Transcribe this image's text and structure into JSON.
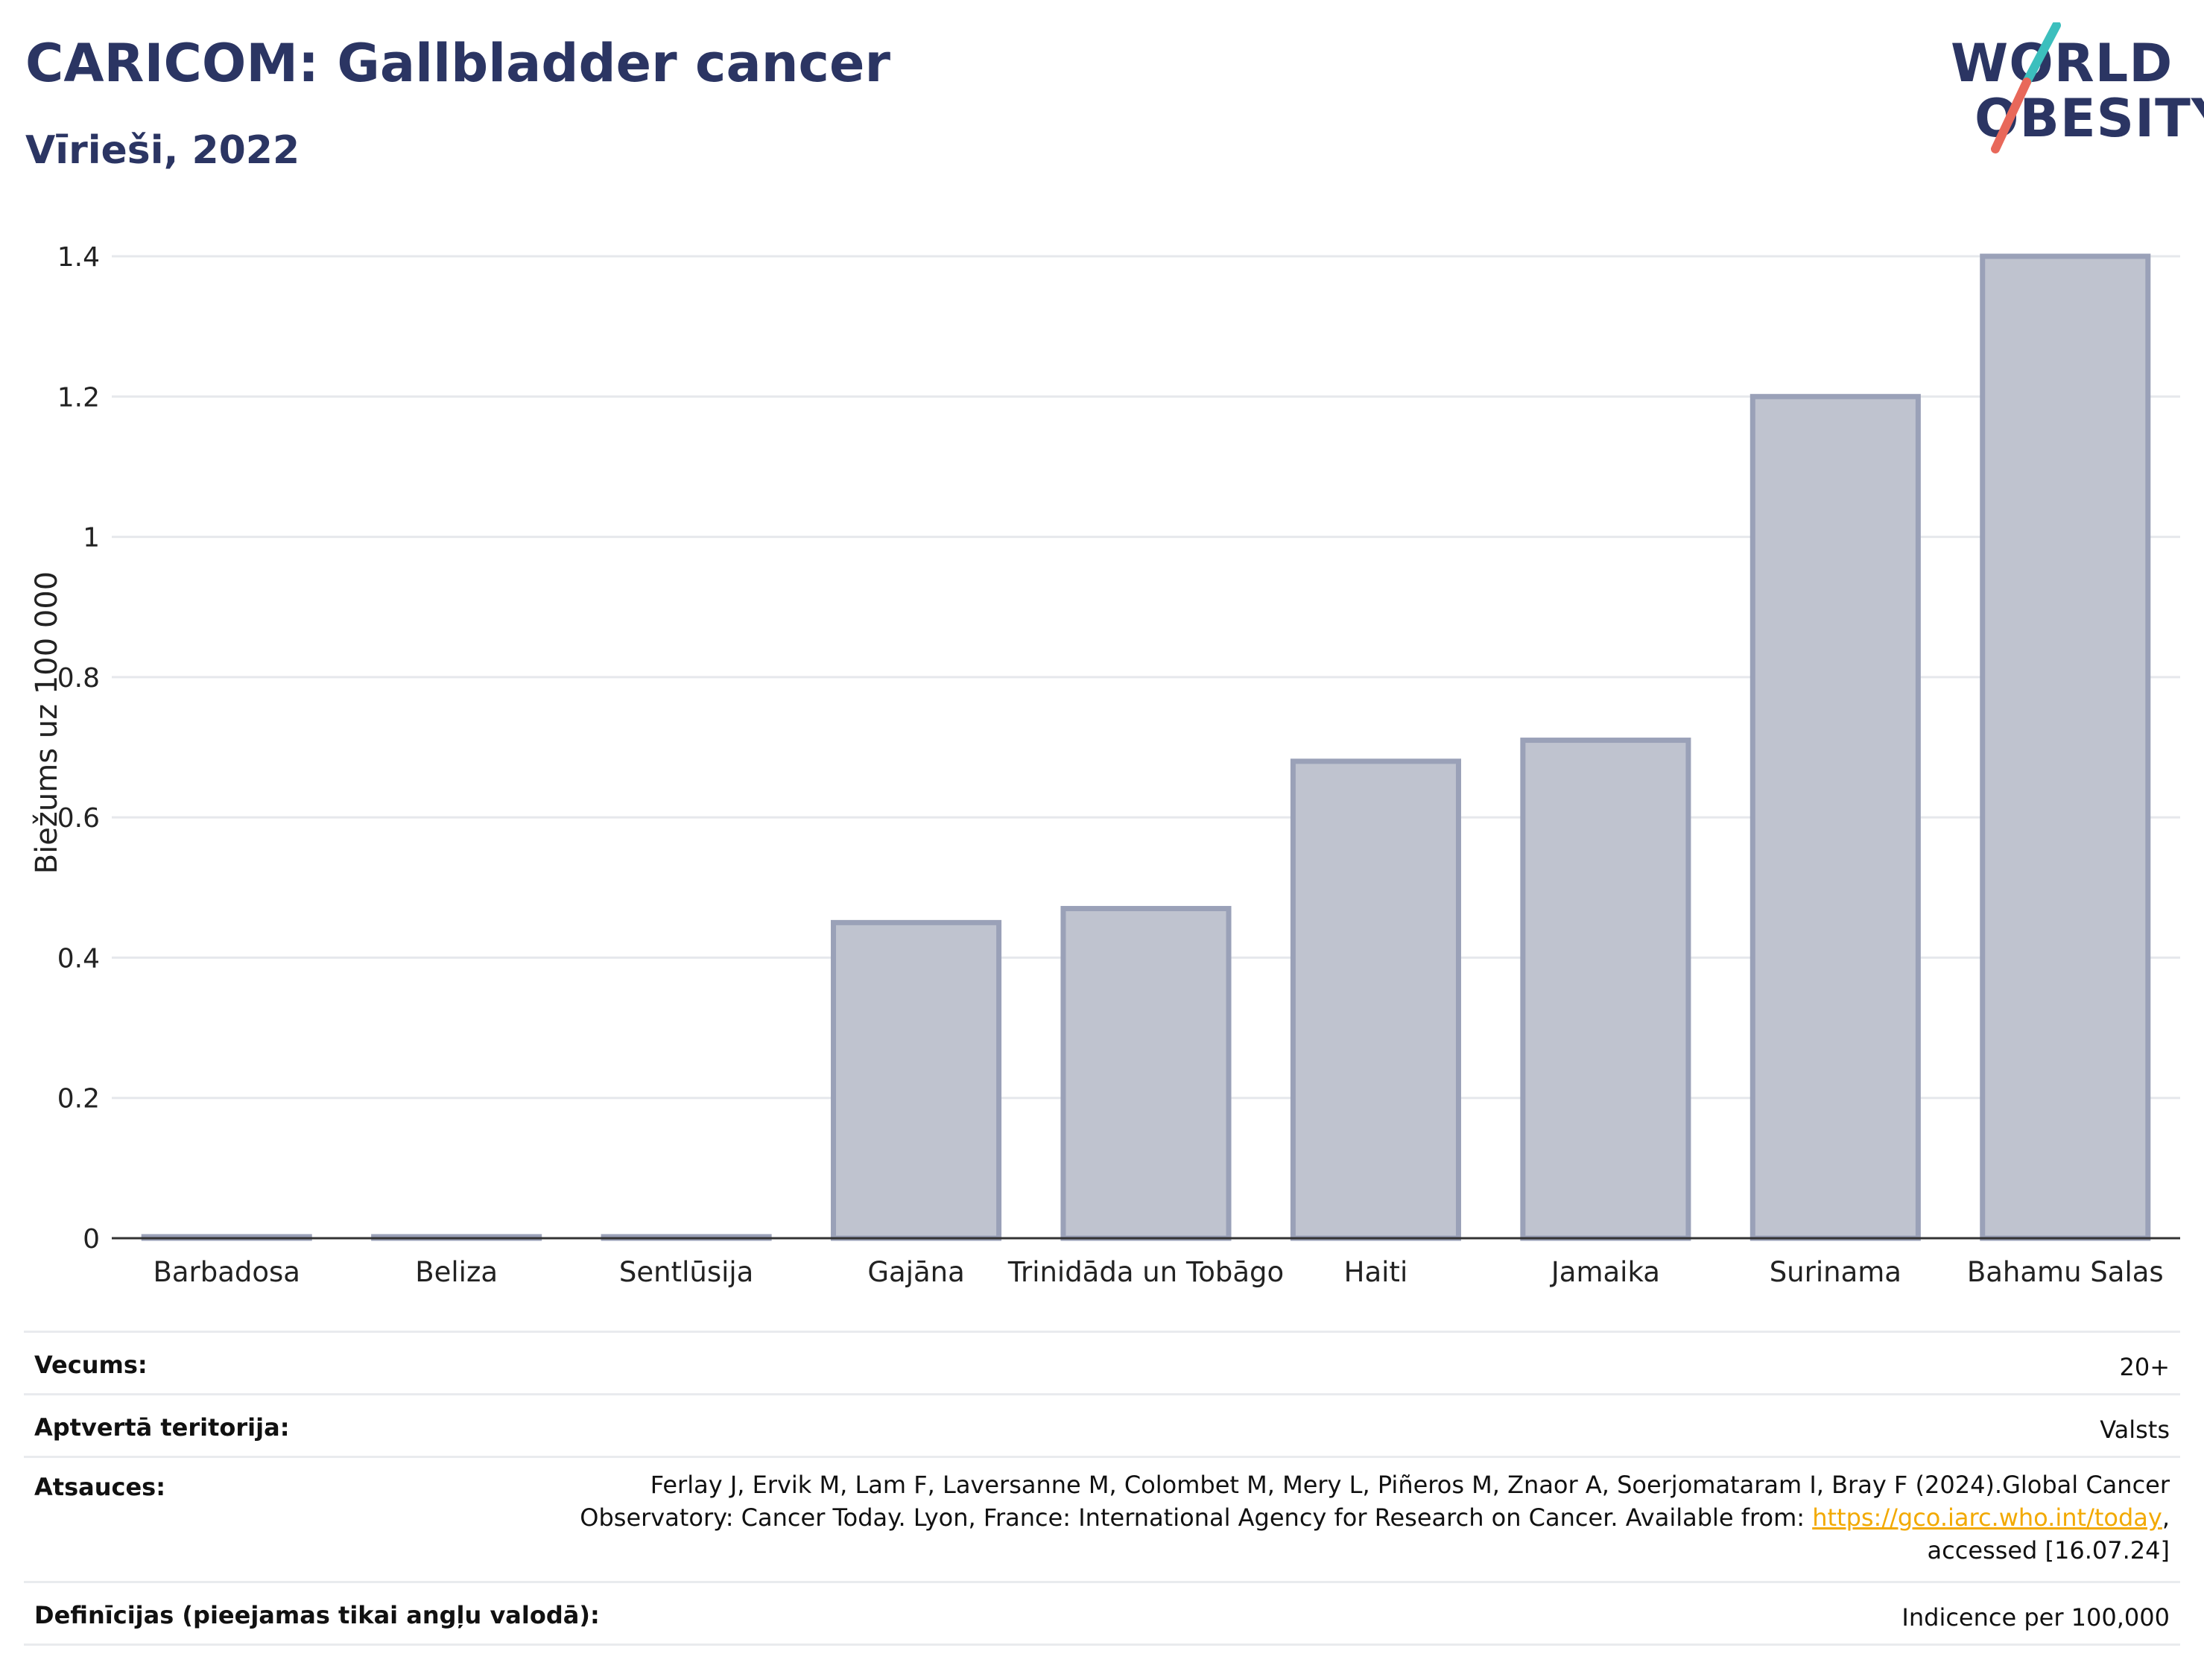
{
  "header": {
    "title": "CARICOM: Gallbladder cancer",
    "subtitle": "Vīrieši, 2022"
  },
  "logo": {
    "line1": "WORLD",
    "line2": "OBESITY",
    "colors": {
      "text": "#2b3563",
      "slash_top": "#3cbfbd",
      "slash_bottom": "#e8685a"
    }
  },
  "chart_data": {
    "type": "bar",
    "categories": [
      "Barbadosa",
      "Beliza",
      "Sentlūsija",
      "Gajāna",
      "Trinidāda un Tobāgo",
      "Haiti",
      "Jamaika",
      "Surinama",
      "Bahamu Salas"
    ],
    "values": [
      0,
      0,
      0,
      0.45,
      0.47,
      0.68,
      0.71,
      1.2,
      1.4
    ],
    "ylabel": "Biežums uz 100 000",
    "ylim": [
      0,
      1.4
    ],
    "yticks": [
      0,
      0.2,
      0.4,
      0.6,
      0.8,
      1,
      1.2,
      1.4
    ],
    "ytick_labels": [
      "0",
      "0.2",
      "0.4",
      "0.6",
      "0.8",
      "1",
      "1.2",
      "1.4"
    ],
    "grid": true,
    "colors": {
      "bar_fill": "#bfc3cf",
      "bar_stroke": "#9aa1b8",
      "grid": "#e6e8ec",
      "axis": "#333333"
    }
  },
  "meta": {
    "age_label": "Vecums:",
    "age_value": "20+",
    "coverage_label": "Aptvertā teritorija:",
    "coverage_value": "Valsts",
    "references_label": "Atsauces:",
    "references_line1": "Ferlay J, Ervik M, Lam F, Laversanne M, Colombet M, Mery L, Piñeros M, Znaor A, Soerjomataram I, Bray F (2024).Global Cancer",
    "references_line2_pre": "Observatory: Cancer Today. Lyon, France: International Agency for Research on Cancer. Available from: ",
    "references_link": "https://gco.iarc.who.int/today",
    "references_line2_post": ",",
    "references_line3": "accessed [16.07.24]",
    "definitions_label": "Definīcijas (pieejamas tikai angļu valodā):",
    "definitions_value": "Indicence per 100,000"
  }
}
